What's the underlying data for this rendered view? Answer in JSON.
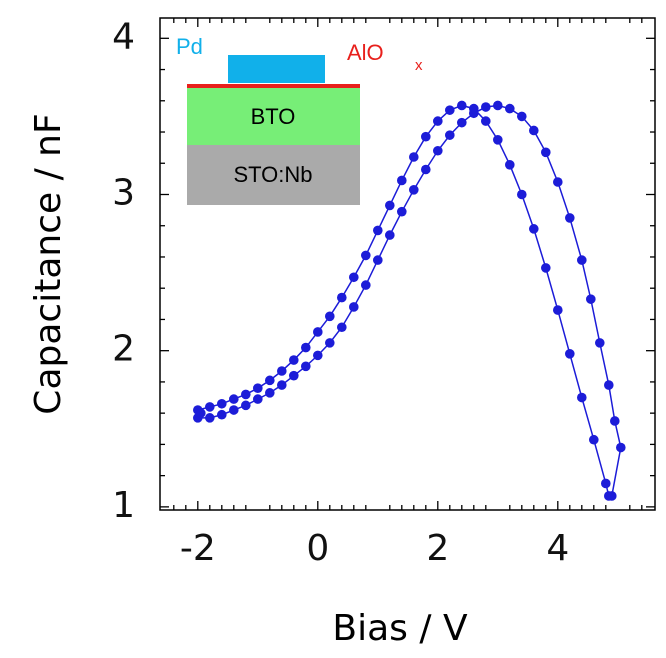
{
  "chart_data": {
    "type": "scatter",
    "xlabel": "Bias / V",
    "ylabel": "Capacitance / nF",
    "color": "#1c1cd8",
    "x": [
      -2.0,
      -1.8,
      -1.6,
      -1.4,
      -1.2,
      -1.0,
      -0.8,
      -0.6,
      -0.4,
      -0.2,
      0.0,
      0.2,
      0.4,
      0.6,
      0.8,
      1.0,
      1.2,
      1.4,
      1.6,
      1.8,
      2.0,
      2.2,
      2.4,
      2.6,
      2.8,
      3.0,
      3.2,
      3.4,
      3.6,
      3.8,
      4.0,
      4.2,
      4.4,
      4.6,
      4.8,
      4.85,
      4.9,
      5.05,
      4.95,
      4.85,
      4.7,
      4.55,
      4.4,
      4.2,
      4.0,
      3.8,
      3.6,
      3.4,
      3.2,
      3.0,
      2.8,
      2.6,
      2.4,
      2.2,
      2.0,
      1.8,
      1.6,
      1.4,
      1.2,
      1.0,
      0.8,
      0.6,
      0.4,
      0.2,
      0.0,
      -0.2,
      -0.4,
      -0.6,
      -0.8,
      -1.0,
      -1.2,
      -1.4,
      -1.6,
      -1.8,
      -2.0,
      -1.95
    ],
    "values": [
      1.62,
      1.64,
      1.66,
      1.69,
      1.72,
      1.76,
      1.81,
      1.87,
      1.94,
      2.02,
      2.12,
      2.22,
      2.34,
      2.47,
      2.61,
      2.77,
      2.93,
      3.09,
      3.24,
      3.37,
      3.47,
      3.54,
      3.57,
      3.55,
      3.47,
      3.35,
      3.19,
      3.0,
      2.78,
      2.53,
      2.26,
      1.98,
      1.7,
      1.43,
      1.15,
      1.07,
      1.07,
      1.38,
      1.55,
      1.78,
      2.05,
      2.33,
      2.58,
      2.85,
      3.08,
      3.27,
      3.41,
      3.5,
      3.55,
      3.57,
      3.56,
      3.52,
      3.46,
      3.38,
      3.28,
      3.16,
      3.03,
      2.89,
      2.74,
      2.58,
      2.42,
      2.28,
      2.15,
      2.05,
      1.97,
      1.9,
      1.84,
      1.78,
      1.73,
      1.69,
      1.65,
      1.62,
      1.59,
      1.57,
      1.57,
      1.6
    ],
    "xlim": [
      -2.63,
      5.62
    ],
    "ylim": [
      0.98,
      4.13
    ],
    "xticks": [
      -2,
      0,
      2,
      4
    ],
    "yticks": [
      1,
      2,
      3,
      4
    ],
    "xminorticks": [
      -2.4,
      -2.2,
      -1.8,
      -1.6,
      -1.4,
      -1.2,
      -0.8,
      -0.6,
      -0.4,
      -0.2,
      0.2,
      0.4,
      0.6,
      0.8,
      1.2,
      1.4,
      1.6,
      1.8,
      2.2,
      2.4,
      2.6,
      2.8,
      3.2,
      3.4,
      3.6,
      3.8,
      4.2,
      4.4,
      4.6,
      4.8,
      5.2,
      5.4
    ],
    "yminorticks": [
      1.2,
      1.4,
      1.6,
      1.8,
      2.2,
      2.4,
      2.6,
      2.8,
      3.2,
      3.4,
      3.6,
      3.8
    ],
    "annotations": [
      "Pd",
      "AlO",
      "x",
      "BTO",
      "STO:Nb"
    ]
  }
}
